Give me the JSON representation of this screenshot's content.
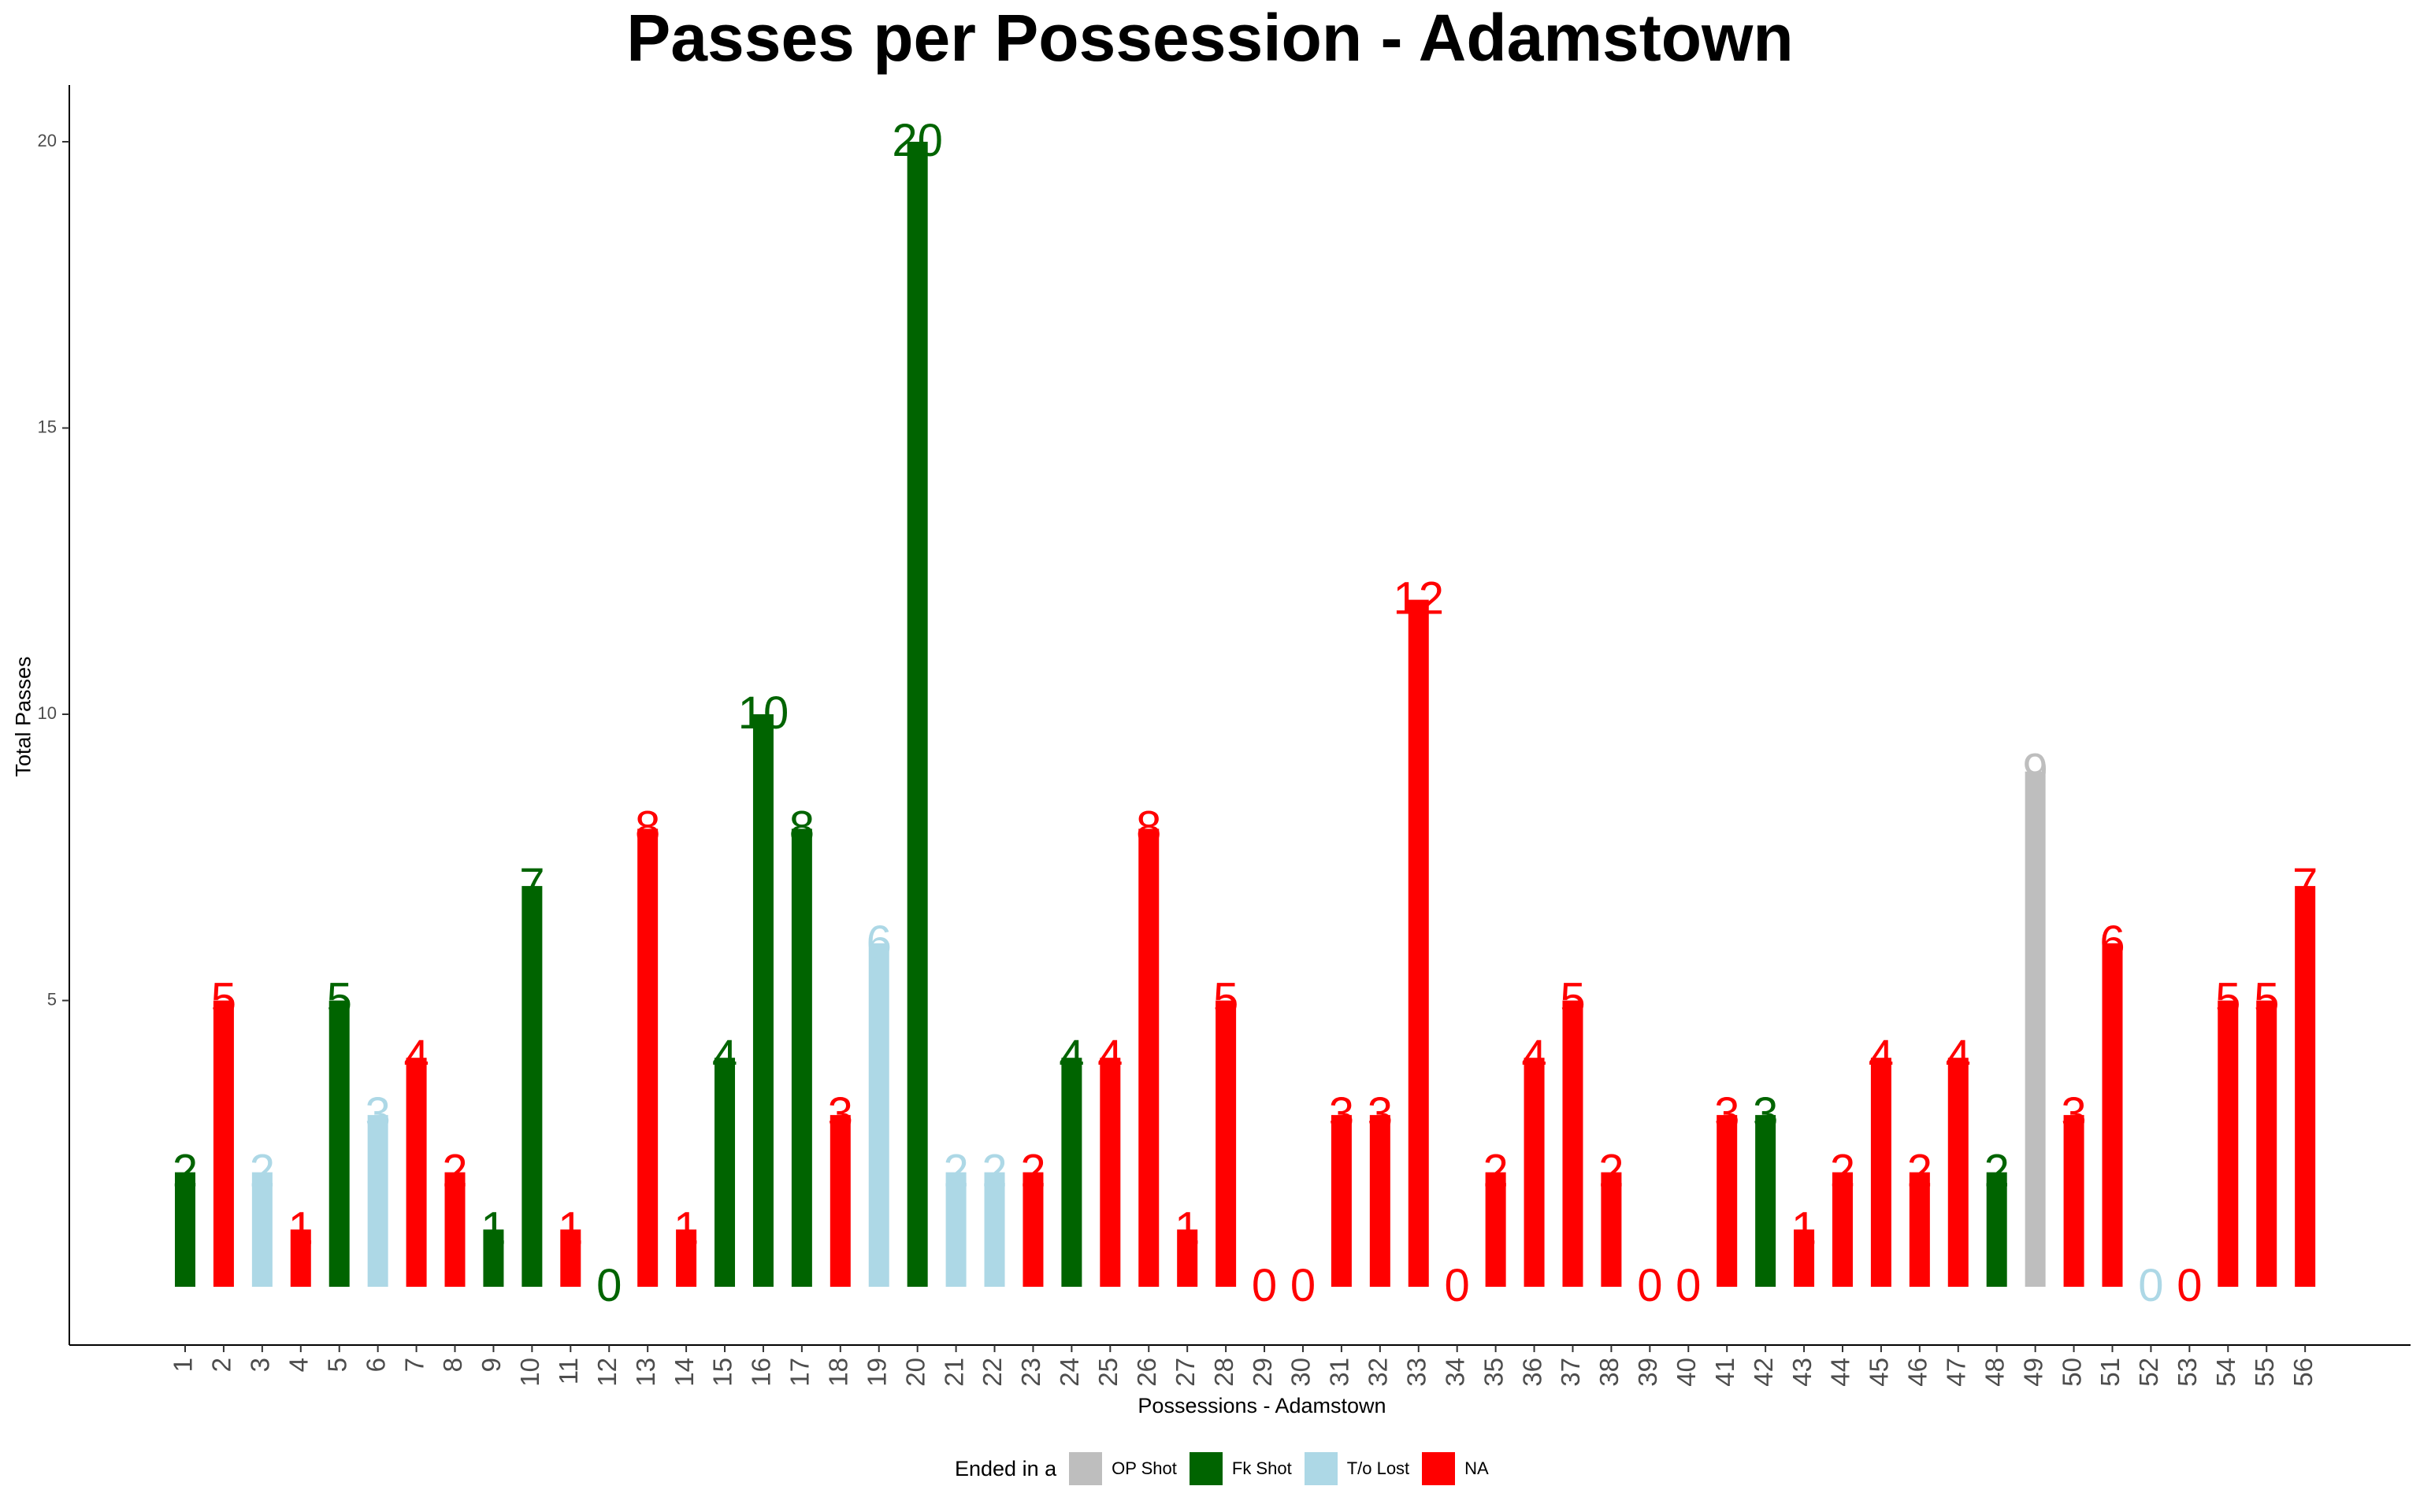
{
  "chart_data": {
    "type": "bar",
    "title": "Passes per Possession - Adamstown",
    "xlabel": "Possessions - Adamstown",
    "ylabel": "Total Passes",
    "ylim": [
      -1,
      21
    ],
    "yticks": [
      5,
      10,
      15,
      20
    ],
    "categories": [
      "1",
      "2",
      "3",
      "4",
      "5",
      "6",
      "7",
      "8",
      "9",
      "10",
      "11",
      "12",
      "13",
      "14",
      "15",
      "16",
      "17",
      "18",
      "19",
      "20",
      "21",
      "22",
      "23",
      "24",
      "25",
      "26",
      "27",
      "28",
      "29",
      "30",
      "31",
      "32",
      "33",
      "34",
      "35",
      "36",
      "37",
      "38",
      "39",
      "40",
      "41",
      "42",
      "43",
      "44",
      "45",
      "46",
      "47",
      "48",
      "49",
      "50",
      "51",
      "52",
      "53",
      "54",
      "55",
      "56"
    ],
    "values": [
      2,
      5,
      2,
      1,
      5,
      3,
      4,
      2,
      1,
      7,
      1,
      0,
      8,
      1,
      4,
      10,
      8,
      3,
      6,
      20,
      2,
      2,
      2,
      4,
      4,
      8,
      1,
      5,
      0,
      0,
      3,
      3,
      12,
      0,
      2,
      4,
      5,
      2,
      0,
      0,
      3,
      3,
      1,
      2,
      4,
      2,
      4,
      2,
      9,
      3,
      6,
      0,
      0,
      5,
      5,
      7
    ],
    "outcome": [
      "Fk Shot",
      "NA",
      "T/o Lost",
      "NA",
      "Fk Shot",
      "T/o Lost",
      "NA",
      "NA",
      "Fk Shot",
      "Fk Shot",
      "NA",
      "Fk Shot",
      "NA",
      "NA",
      "Fk Shot",
      "Fk Shot",
      "Fk Shot",
      "NA",
      "T/o Lost",
      "Fk Shot",
      "T/o Lost",
      "T/o Lost",
      "NA",
      "Fk Shot",
      "NA",
      "NA",
      "NA",
      "NA",
      "NA",
      "NA",
      "NA",
      "NA",
      "NA",
      "NA",
      "NA",
      "NA",
      "NA",
      "NA",
      "NA",
      "NA",
      "NA",
      "Fk Shot",
      "NA",
      "NA",
      "NA",
      "NA",
      "NA",
      "Fk Shot",
      "OP Shot",
      "NA",
      "NA",
      "T/o Lost",
      "NA",
      "NA",
      "NA",
      "NA"
    ],
    "legend": {
      "title": "Ended in a",
      "position": "bottom",
      "entries": [
        "OP Shot",
        "Fk Shot",
        "T/o Lost",
        "NA"
      ]
    },
    "colors": {
      "OP Shot": "#bebebe",
      "Fk Shot": "#006400",
      "T/o Lost": "#add8e6",
      "NA": "#ff0000"
    },
    "grid": false
  }
}
